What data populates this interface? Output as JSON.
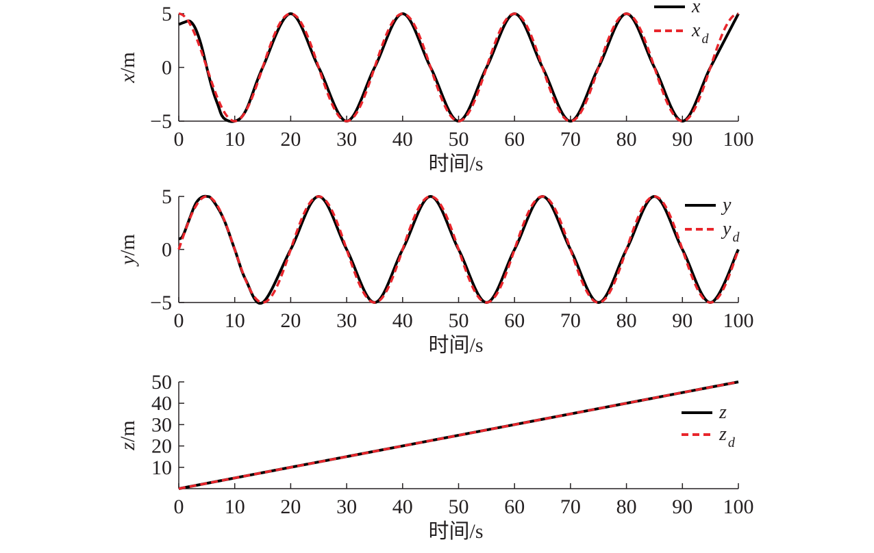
{
  "chart_data": [
    {
      "type": "line",
      "xlabel": "时间/s",
      "ylabel_var": "x",
      "ylabel_unit": "/m",
      "xlim": [
        0,
        100
      ],
      "ylim": [
        -5,
        5
      ],
      "x_ticks": [
        0,
        10,
        20,
        30,
        40,
        50,
        60,
        70,
        80,
        90,
        100
      ],
      "y_ticks": [
        -5,
        0,
        5
      ],
      "grid": false,
      "legend_position": "top-right",
      "series": [
        {
          "name": "x",
          "style": "solid",
          "color": "#000000",
          "x": [
            0,
            1,
            2,
            3,
            4,
            5,
            6,
            7,
            8,
            10,
            12,
            15,
            20,
            25,
            30,
            35,
            40,
            45,
            50,
            55,
            60,
            65,
            70,
            75,
            80,
            85,
            90,
            95,
            100
          ],
          "y": [
            4.0,
            4.2,
            4.3,
            3.6,
            2.1,
            0.0,
            -2.0,
            -3.5,
            -4.7,
            -5.0,
            -4.0,
            0.0,
            5.0,
            0.0,
            -5.0,
            0.0,
            5.0,
            0.0,
            -5.0,
            0.0,
            5.0,
            0.0,
            -5.0,
            0.0,
            5.0,
            0.0,
            -5.0,
            0.0,
            5.0
          ]
        },
        {
          "name": "x",
          "name_sub": "d",
          "style": "dashed",
          "color": "#e8262c",
          "func": "5*cos(2*pi*t/20)"
        }
      ]
    },
    {
      "type": "line",
      "xlabel": "时间/s",
      "ylabel_var": "y",
      "ylabel_unit": "/m",
      "xlim": [
        0,
        100
      ],
      "ylim": [
        -5,
        5
      ],
      "x_ticks": [
        0,
        10,
        20,
        30,
        40,
        50,
        60,
        70,
        80,
        90,
        100
      ],
      "y_ticks": [
        -5,
        0,
        5
      ],
      "grid": false,
      "legend_position": "top-right",
      "series": [
        {
          "name": "y",
          "style": "solid",
          "color": "#000000",
          "x": [
            0,
            0.5,
            1,
            2,
            3,
            4,
            5,
            6,
            8,
            10,
            12,
            15,
            20,
            25,
            30,
            35,
            40,
            45,
            50,
            55,
            60,
            65,
            70,
            75,
            80,
            85,
            90,
            95,
            100
          ],
          "y": [
            1.0,
            1.1,
            1.6,
            3.0,
            4.3,
            4.9,
            5.0,
            4.7,
            2.9,
            0.0,
            -2.9,
            -5.0,
            0.0,
            5.0,
            0.0,
            -5.0,
            0.0,
            5.0,
            0.0,
            -5.0,
            0.0,
            5.0,
            0.0,
            -5.0,
            0.0,
            5.0,
            0.0,
            -5.0,
            0.0
          ]
        },
        {
          "name": "y",
          "name_sub": "d",
          "style": "dashed",
          "color": "#e8262c",
          "func": "5*sin(2*pi*t/20)"
        }
      ]
    },
    {
      "type": "line",
      "xlabel": "时间/s",
      "ylabel_var": "z",
      "ylabel_unit": "/m",
      "xlim": [
        0,
        100
      ],
      "ylim": [
        0,
        50
      ],
      "x_ticks": [
        0,
        10,
        20,
        30,
        40,
        50,
        60,
        70,
        80,
        90,
        100
      ],
      "y_ticks": [
        10,
        20,
        30,
        40,
        50
      ],
      "grid": false,
      "legend_position": "right",
      "series": [
        {
          "name": "z",
          "style": "solid",
          "color": "#000000",
          "x": [
            0,
            100
          ],
          "y": [
            0,
            50
          ]
        },
        {
          "name": "z",
          "name_sub": "d",
          "style": "dashed",
          "color": "#e8262c",
          "x": [
            0,
            100
          ],
          "y": [
            0,
            50
          ]
        }
      ]
    }
  ]
}
